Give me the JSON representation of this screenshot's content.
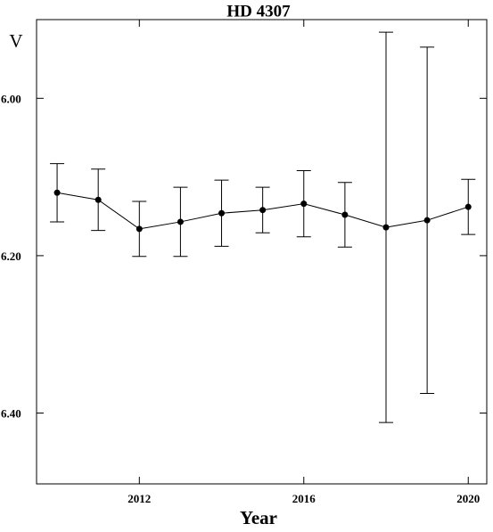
{
  "chart_data": {
    "type": "errorbar_line",
    "title": "HD 4307",
    "xlabel": "Year",
    "ylabel": "V",
    "x": [
      2010,
      2011,
      2012,
      2013,
      2014,
      2015,
      2016,
      2017,
      2018,
      2019,
      2020
    ],
    "series": [
      {
        "color": "#000000",
        "values": [
          6.12,
          6.129,
          6.166,
          6.157,
          6.146,
          6.142,
          6.134,
          6.148,
          6.164,
          6.155,
          6.138
        ],
        "errors": [
          0.037,
          0.039,
          0.035,
          0.044,
          0.042,
          0.029,
          0.042,
          0.041,
          0.248,
          0.22,
          0.035
        ]
      }
    ],
    "xlim": [
      2009.5,
      2020.45
    ],
    "xticks": [
      2012,
      2016,
      2020
    ],
    "ylim": [
      5.9,
      6.49
    ],
    "y_inverted": true,
    "yticks": [
      {
        "value": 6.0,
        "label": "6.00"
      },
      {
        "value": 6.2,
        "label": "6.20"
      },
      {
        "value": 6.4,
        "label": "6.40"
      }
    ]
  }
}
